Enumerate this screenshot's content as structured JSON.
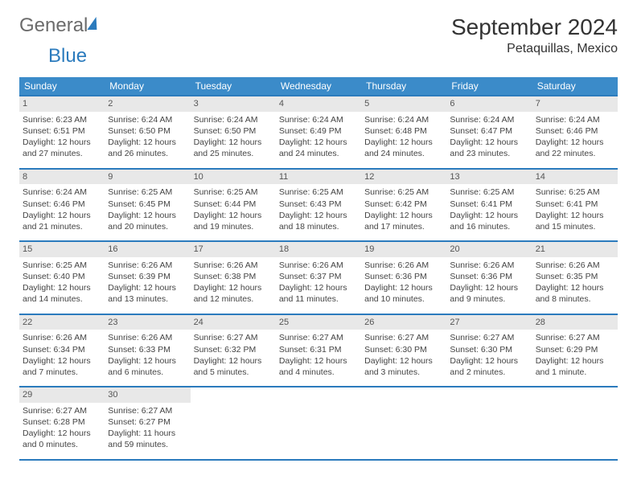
{
  "logo": {
    "part1": "General",
    "part2": "Blue"
  },
  "title": "September 2024",
  "location": "Petaquillas, Mexico",
  "colors": {
    "header_bg": "#3b8bc9",
    "header_text": "#ffffff",
    "border": "#2b7bbd",
    "daynum_bg": "#e8e8e8",
    "text": "#444444"
  },
  "day_headers": [
    "Sunday",
    "Monday",
    "Tuesday",
    "Wednesday",
    "Thursday",
    "Friday",
    "Saturday"
  ],
  "weeks": [
    [
      {
        "n": "1",
        "sr": "Sunrise: 6:23 AM",
        "ss": "Sunset: 6:51 PM",
        "d1": "Daylight: 12 hours",
        "d2": "and 27 minutes."
      },
      {
        "n": "2",
        "sr": "Sunrise: 6:24 AM",
        "ss": "Sunset: 6:50 PM",
        "d1": "Daylight: 12 hours",
        "d2": "and 26 minutes."
      },
      {
        "n": "3",
        "sr": "Sunrise: 6:24 AM",
        "ss": "Sunset: 6:50 PM",
        "d1": "Daylight: 12 hours",
        "d2": "and 25 minutes."
      },
      {
        "n": "4",
        "sr": "Sunrise: 6:24 AM",
        "ss": "Sunset: 6:49 PM",
        "d1": "Daylight: 12 hours",
        "d2": "and 24 minutes."
      },
      {
        "n": "5",
        "sr": "Sunrise: 6:24 AM",
        "ss": "Sunset: 6:48 PM",
        "d1": "Daylight: 12 hours",
        "d2": "and 24 minutes."
      },
      {
        "n": "6",
        "sr": "Sunrise: 6:24 AM",
        "ss": "Sunset: 6:47 PM",
        "d1": "Daylight: 12 hours",
        "d2": "and 23 minutes."
      },
      {
        "n": "7",
        "sr": "Sunrise: 6:24 AM",
        "ss": "Sunset: 6:46 PM",
        "d1": "Daylight: 12 hours",
        "d2": "and 22 minutes."
      }
    ],
    [
      {
        "n": "8",
        "sr": "Sunrise: 6:24 AM",
        "ss": "Sunset: 6:46 PM",
        "d1": "Daylight: 12 hours",
        "d2": "and 21 minutes."
      },
      {
        "n": "9",
        "sr": "Sunrise: 6:25 AM",
        "ss": "Sunset: 6:45 PM",
        "d1": "Daylight: 12 hours",
        "d2": "and 20 minutes."
      },
      {
        "n": "10",
        "sr": "Sunrise: 6:25 AM",
        "ss": "Sunset: 6:44 PM",
        "d1": "Daylight: 12 hours",
        "d2": "and 19 minutes."
      },
      {
        "n": "11",
        "sr": "Sunrise: 6:25 AM",
        "ss": "Sunset: 6:43 PM",
        "d1": "Daylight: 12 hours",
        "d2": "and 18 minutes."
      },
      {
        "n": "12",
        "sr": "Sunrise: 6:25 AM",
        "ss": "Sunset: 6:42 PM",
        "d1": "Daylight: 12 hours",
        "d2": "and 17 minutes."
      },
      {
        "n": "13",
        "sr": "Sunrise: 6:25 AM",
        "ss": "Sunset: 6:41 PM",
        "d1": "Daylight: 12 hours",
        "d2": "and 16 minutes."
      },
      {
        "n": "14",
        "sr": "Sunrise: 6:25 AM",
        "ss": "Sunset: 6:41 PM",
        "d1": "Daylight: 12 hours",
        "d2": "and 15 minutes."
      }
    ],
    [
      {
        "n": "15",
        "sr": "Sunrise: 6:25 AM",
        "ss": "Sunset: 6:40 PM",
        "d1": "Daylight: 12 hours",
        "d2": "and 14 minutes."
      },
      {
        "n": "16",
        "sr": "Sunrise: 6:26 AM",
        "ss": "Sunset: 6:39 PM",
        "d1": "Daylight: 12 hours",
        "d2": "and 13 minutes."
      },
      {
        "n": "17",
        "sr": "Sunrise: 6:26 AM",
        "ss": "Sunset: 6:38 PM",
        "d1": "Daylight: 12 hours",
        "d2": "and 12 minutes."
      },
      {
        "n": "18",
        "sr": "Sunrise: 6:26 AM",
        "ss": "Sunset: 6:37 PM",
        "d1": "Daylight: 12 hours",
        "d2": "and 11 minutes."
      },
      {
        "n": "19",
        "sr": "Sunrise: 6:26 AM",
        "ss": "Sunset: 6:36 PM",
        "d1": "Daylight: 12 hours",
        "d2": "and 10 minutes."
      },
      {
        "n": "20",
        "sr": "Sunrise: 6:26 AM",
        "ss": "Sunset: 6:36 PM",
        "d1": "Daylight: 12 hours",
        "d2": "and 9 minutes."
      },
      {
        "n": "21",
        "sr": "Sunrise: 6:26 AM",
        "ss": "Sunset: 6:35 PM",
        "d1": "Daylight: 12 hours",
        "d2": "and 8 minutes."
      }
    ],
    [
      {
        "n": "22",
        "sr": "Sunrise: 6:26 AM",
        "ss": "Sunset: 6:34 PM",
        "d1": "Daylight: 12 hours",
        "d2": "and 7 minutes."
      },
      {
        "n": "23",
        "sr": "Sunrise: 6:26 AM",
        "ss": "Sunset: 6:33 PM",
        "d1": "Daylight: 12 hours",
        "d2": "and 6 minutes."
      },
      {
        "n": "24",
        "sr": "Sunrise: 6:27 AM",
        "ss": "Sunset: 6:32 PM",
        "d1": "Daylight: 12 hours",
        "d2": "and 5 minutes."
      },
      {
        "n": "25",
        "sr": "Sunrise: 6:27 AM",
        "ss": "Sunset: 6:31 PM",
        "d1": "Daylight: 12 hours",
        "d2": "and 4 minutes."
      },
      {
        "n": "26",
        "sr": "Sunrise: 6:27 AM",
        "ss": "Sunset: 6:30 PM",
        "d1": "Daylight: 12 hours",
        "d2": "and 3 minutes."
      },
      {
        "n": "27",
        "sr": "Sunrise: 6:27 AM",
        "ss": "Sunset: 6:30 PM",
        "d1": "Daylight: 12 hours",
        "d2": "and 2 minutes."
      },
      {
        "n": "28",
        "sr": "Sunrise: 6:27 AM",
        "ss": "Sunset: 6:29 PM",
        "d1": "Daylight: 12 hours",
        "d2": "and 1 minute."
      }
    ],
    [
      {
        "n": "29",
        "sr": "Sunrise: 6:27 AM",
        "ss": "Sunset: 6:28 PM",
        "d1": "Daylight: 12 hours",
        "d2": "and 0 minutes."
      },
      {
        "n": "30",
        "sr": "Sunrise: 6:27 AM",
        "ss": "Sunset: 6:27 PM",
        "d1": "Daylight: 11 hours",
        "d2": "and 59 minutes."
      },
      null,
      null,
      null,
      null,
      null
    ]
  ]
}
